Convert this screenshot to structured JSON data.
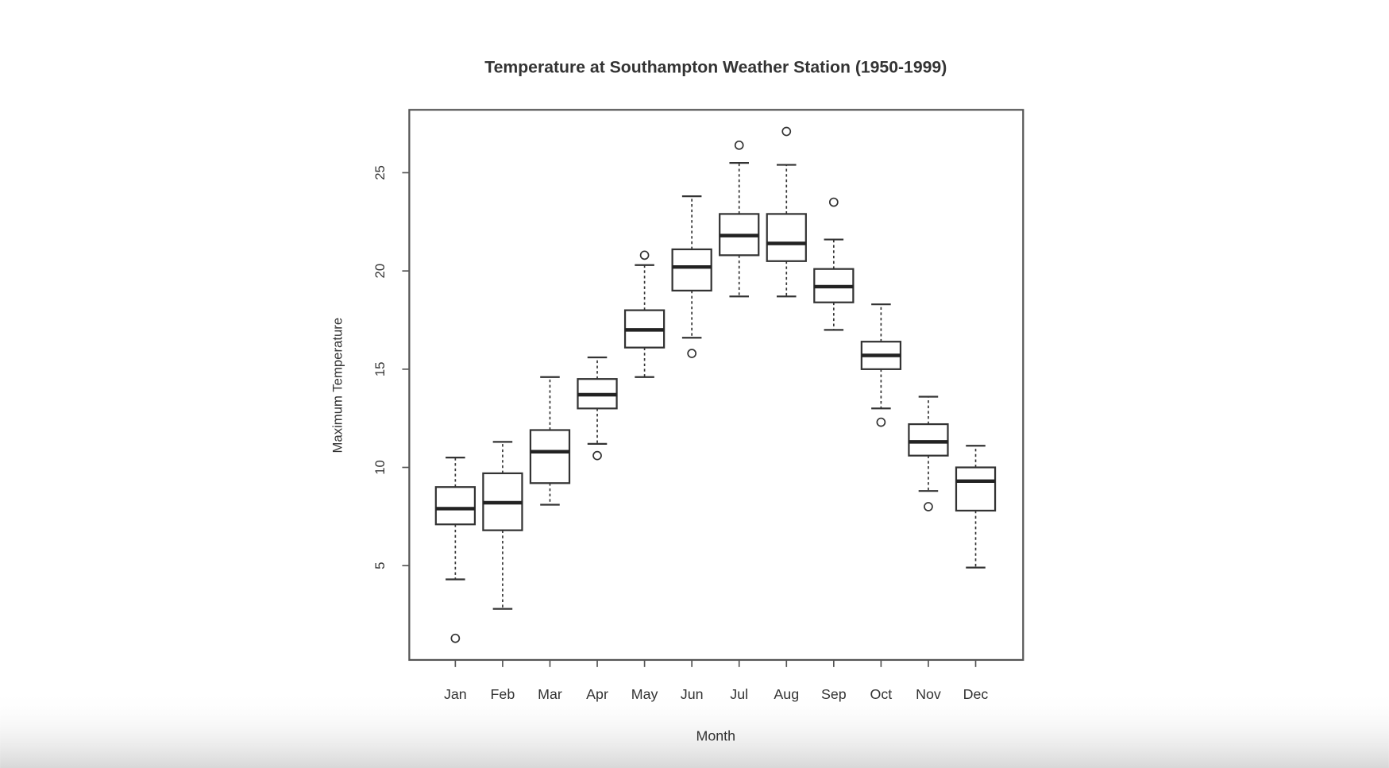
{
  "chart_data": {
    "type": "box",
    "title": "Temperature at Southampton Weather Station (1950-1999)",
    "x_label": "Month",
    "y_label": "Maximum Temperature",
    "categories": [
      "Jan",
      "Feb",
      "Mar",
      "Apr",
      "May",
      "Jun",
      "Jul",
      "Aug",
      "Sep",
      "Oct",
      "Nov",
      "Dec"
    ],
    "boxes": [
      {
        "low": 4.3,
        "q1": 7.1,
        "median": 7.9,
        "q3": 9.0,
        "high": 10.5,
        "outliers": [
          1.3
        ]
      },
      {
        "low": 2.8,
        "q1": 6.8,
        "median": 8.2,
        "q3": 9.7,
        "high": 11.3,
        "outliers": []
      },
      {
        "low": 8.1,
        "q1": 9.2,
        "median": 10.8,
        "q3": 11.9,
        "high": 14.6,
        "outliers": []
      },
      {
        "low": 11.2,
        "q1": 13.0,
        "median": 13.7,
        "q3": 14.5,
        "high": 15.6,
        "outliers": [
          10.6
        ]
      },
      {
        "low": 14.6,
        "q1": 16.1,
        "median": 17.0,
        "q3": 18.0,
        "high": 20.3,
        "outliers": [
          20.8
        ]
      },
      {
        "low": 16.6,
        "q1": 19.0,
        "median": 20.2,
        "q3": 21.1,
        "high": 23.8,
        "outliers": [
          15.8
        ]
      },
      {
        "low": 18.7,
        "q1": 20.8,
        "median": 21.8,
        "q3": 22.9,
        "high": 25.5,
        "outliers": [
          26.4
        ]
      },
      {
        "low": 18.7,
        "q1": 20.5,
        "median": 21.4,
        "q3": 22.9,
        "high": 25.4,
        "outliers": [
          27.1
        ]
      },
      {
        "low": 17.0,
        "q1": 18.4,
        "median": 19.2,
        "q3": 20.1,
        "high": 21.6,
        "outliers": [
          23.5
        ]
      },
      {
        "low": 13.0,
        "q1": 15.0,
        "median": 15.7,
        "q3": 16.4,
        "high": 18.3,
        "outliers": [
          12.3
        ]
      },
      {
        "low": 8.8,
        "q1": 10.6,
        "median": 11.3,
        "q3": 12.2,
        "high": 13.6,
        "outliers": [
          8.0
        ]
      },
      {
        "low": 4.9,
        "q1": 7.8,
        "median": 9.3,
        "q3": 10.0,
        "high": 11.1,
        "outliers": []
      }
    ],
    "color": "#333333",
    "ylim": [
      0.2,
      28.2
    ],
    "yticks": [
      5,
      10,
      15,
      20,
      25
    ]
  }
}
